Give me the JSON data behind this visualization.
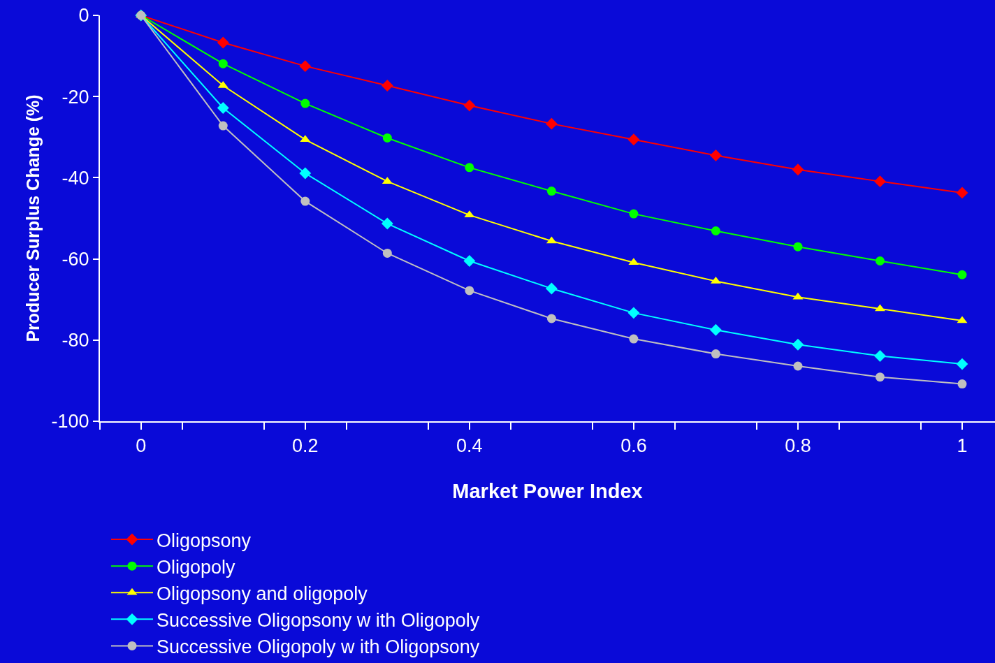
{
  "chart_data": {
    "type": "line",
    "xlabel": "Market Power Index",
    "ylabel": "Producer Surplus Change (%)",
    "x": [
      0,
      0.1,
      0.2,
      0.3,
      0.4,
      0.5,
      0.6,
      0.7,
      0.8,
      0.9,
      1
    ],
    "xlim": [
      -0.05,
      1.04
    ],
    "xticks": [
      0,
      0.2,
      0.4,
      0.6,
      0.8,
      1,
      {
        "value": -0.05,
        "label": null
      },
      {
        "value": 0.05,
        "label": null
      },
      {
        "value": 0.15,
        "label": null
      },
      {
        "value": 0.25,
        "label": null
      },
      {
        "value": 0.35,
        "label": null
      },
      {
        "value": 0.45,
        "label": null
      },
      {
        "value": 0.55,
        "label": null
      },
      {
        "value": 0.65,
        "label": null
      },
      {
        "value": 0.75,
        "label": null
      },
      {
        "value": 0.85,
        "label": null
      },
      {
        "value": 0.95,
        "label": null
      }
    ],
    "ylim": [
      -100,
      0
    ],
    "yticks": [
      0,
      -20,
      -40,
      -60,
      -80,
      -100
    ],
    "grid": false,
    "legend": "bottom",
    "line_style": "solid",
    "series": [
      {
        "name": "Oligopsony",
        "color": "#ff0000",
        "marker": "diamond",
        "values": [
          0,
          -6.7,
          -12.5,
          -17.3,
          -22.2,
          -26.7,
          -30.6,
          -34.5,
          -38,
          -40.9,
          -43.7
        ]
      },
      {
        "name": "Oligopoly",
        "color": "#00ff00",
        "marker": "circle",
        "values": [
          0,
          -11.9,
          -21.7,
          -30.2,
          -37.5,
          -43.3,
          -48.9,
          -53.1,
          -57,
          -60.5,
          -63.9
        ]
      },
      {
        "name": "Oligopsony and oligopoly",
        "color": "#ffff00",
        "marker": "triangle",
        "values": [
          0,
          -17.3,
          -30.6,
          -40.9,
          -49.2,
          -55.6,
          -60.9,
          -65.5,
          -69.4,
          -72.3,
          -75.2
        ]
      },
      {
        "name": "Successive Oligopsony w ith Oligopoly",
        "color": "#00ffff",
        "marker": "diamond",
        "values": [
          0,
          -22.8,
          -38.9,
          -51.3,
          -60.5,
          -67.3,
          -73.3,
          -77.5,
          -81.1,
          -83.9,
          -85.9
        ]
      },
      {
        "name": "Successive Oligopoly w ith Oligopsony",
        "color": "#c0c0c0",
        "marker": "circle",
        "values": [
          0,
          -27.2,
          -45.8,
          -58.6,
          -67.8,
          -74.7,
          -79.7,
          -83.4,
          -86.4,
          -89.1,
          -90.8
        ]
      }
    ]
  }
}
